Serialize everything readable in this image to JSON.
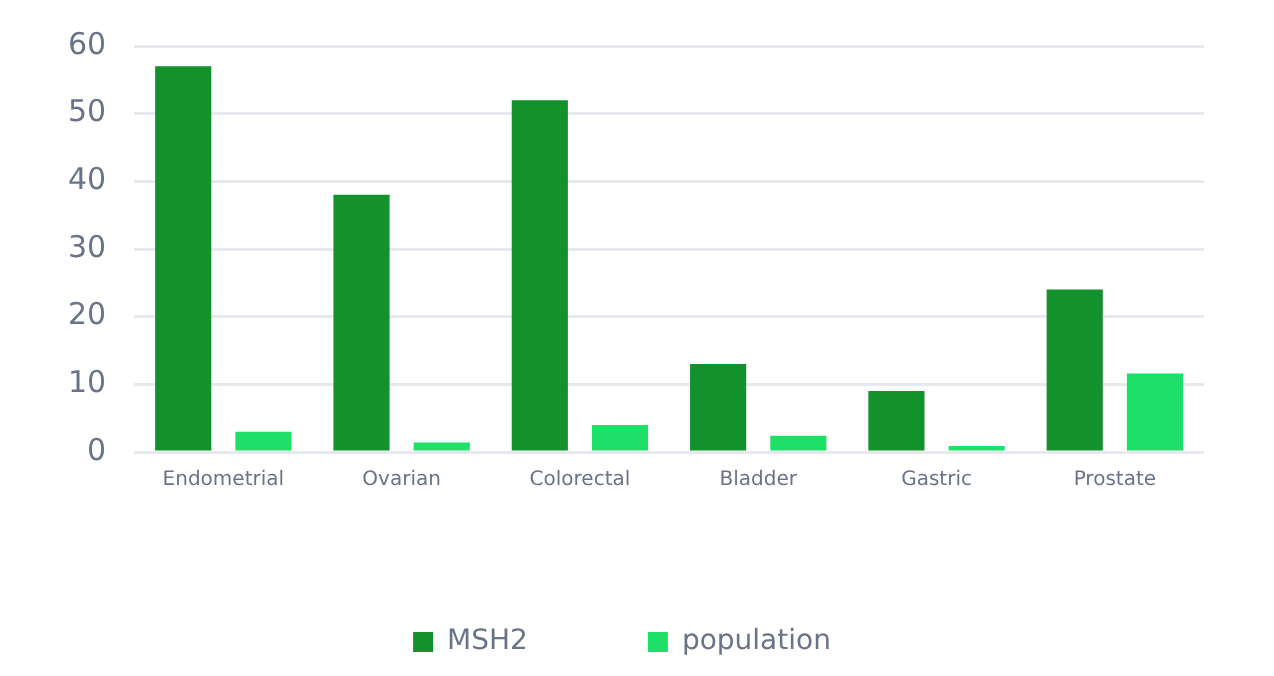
{
  "chart_data": {
    "type": "bar",
    "categories": [
      "Endometrial",
      "Ovarian",
      "Colorectal",
      "Bladder",
      "Gastric",
      "Prostate"
    ],
    "series": [
      {
        "name": "MSH2",
        "color": "#13912c",
        "values": [
          57,
          38,
          52,
          13,
          9,
          24
        ]
      },
      {
        "name": "population",
        "color": "#1ee068",
        "values": [
          3,
          1.4,
          4,
          2.4,
          0.9,
          11.6
        ]
      }
    ],
    "ylim": [
      0,
      60
    ],
    "yticks": [
      0,
      10,
      20,
      30,
      40,
      50,
      60
    ],
    "grid": "y",
    "legend": "bottom"
  }
}
